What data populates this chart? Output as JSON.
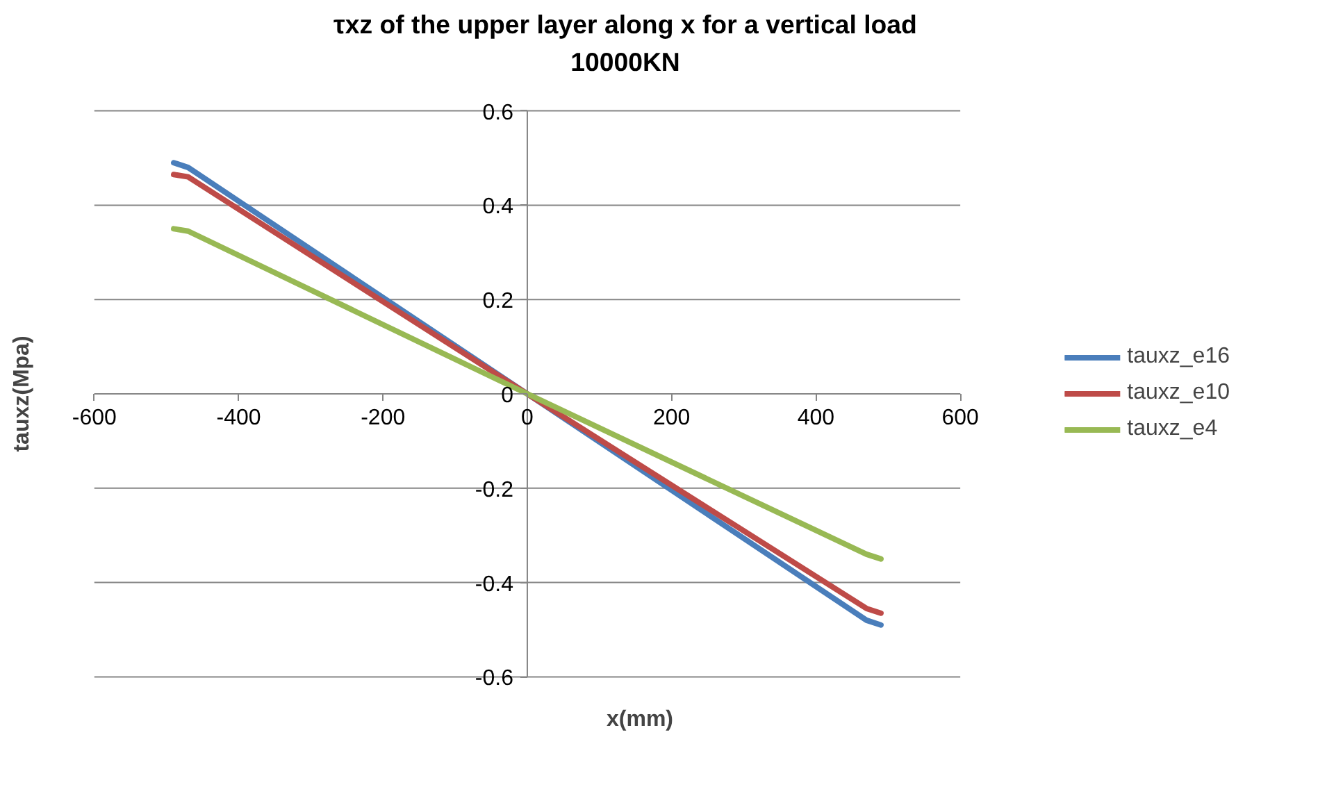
{
  "chart_data": {
    "type": "line",
    "title": "τxz of the upper layer  along x for a vertical load 10000KN",
    "xlabel": "x(mm)",
    "ylabel": "tauxz(Mpa)",
    "xlim": [
      -600,
      600
    ],
    "ylim": [
      -0.6,
      0.6
    ],
    "xticks": [
      -600,
      -400,
      -200,
      0,
      200,
      400,
      600
    ],
    "yticks": [
      -0.6,
      -0.4,
      -0.2,
      0,
      0.2,
      0.4,
      0.6
    ],
    "grid": "y",
    "legend": "right",
    "marker": "none",
    "line_style": "solid",
    "series": [
      {
        "name": "tauxz_e16",
        "color": "#4a7ebb",
        "x": [
          -490,
          -470,
          0,
          470,
          490
        ],
        "values": [
          0.49,
          0.48,
          0,
          -0.48,
          -0.49
        ]
      },
      {
        "name": "tauxz_e10",
        "color": "#be4b48",
        "x": [
          -490,
          -470,
          0,
          470,
          490
        ],
        "values": [
          0.465,
          0.46,
          0,
          -0.455,
          -0.465
        ]
      },
      {
        "name": "tauxz_e4",
        "color": "#98b954",
        "x": [
          -490,
          -470,
          0,
          470,
          490
        ],
        "values": [
          0.35,
          0.345,
          0,
          -0.34,
          -0.35
        ]
      }
    ]
  }
}
